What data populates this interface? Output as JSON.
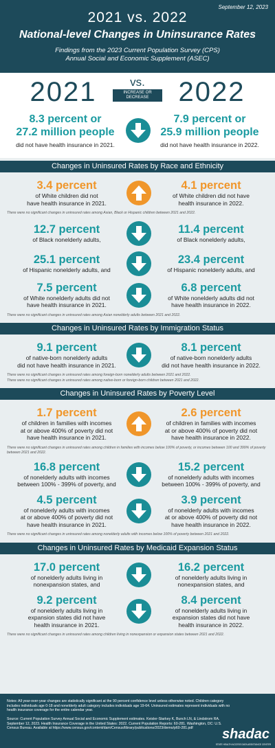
{
  "header": {
    "date": "September 12, 2023",
    "headline": "2021 vs. 2022",
    "title": "National-level Changes in Uninsurance Rates",
    "subtitle": [
      "Findings from the 2023 Current Population Survey (CPS)",
      "Annual Social and Economic Supplement (ASEC)"
    ]
  },
  "comparison": {
    "year_left": "2021",
    "vs": "vs.",
    "change_label": [
      "INCREASE OR",
      "DECREASE"
    ],
    "year_right": "2022",
    "direction": "decrease",
    "left": {
      "stat": [
        "8.3 percent or",
        "27.2 million people"
      ],
      "text": [
        "did not have health insurance in 2021."
      ]
    },
    "right": {
      "stat": [
        "7.9 percent or",
        "25.9 million people"
      ],
      "text": [
        "did not have health insurance in 2022."
      ]
    }
  },
  "sections": [
    {
      "heading": "Changes in Uninsured Rates by Race and Ethnicity",
      "items": [
        {
          "direction": "increase",
          "left": {
            "stat": "3.4 percent",
            "text": [
              "of White children did not",
              "have health insurance in 2021."
            ]
          },
          "right": {
            "stat": "4.1 percent",
            "text": [
              "of White children did not have",
              "health insurance in 2022."
            ]
          }
        },
        {
          "note": [
            "There were no significant changes in uninsured rates among Asian, Black or Hispanic children between 2021 and 2022."
          ]
        },
        {
          "direction": "decrease",
          "left": {
            "stat": "12.7 percent",
            "text": [
              "of Black nonelderly adults,"
            ]
          },
          "right": {
            "stat": "11.4 percent",
            "text": [
              "of Black nonelderly adults,"
            ]
          }
        },
        {
          "direction": "decrease",
          "left": {
            "stat": "25.1 percent",
            "text": [
              "of Hispanic nonelderly adults, and"
            ]
          },
          "right": {
            "stat": "23.4 percent",
            "text": [
              "of Hispanic nonelderly adults, and"
            ]
          }
        },
        {
          "direction": "decrease",
          "left": {
            "stat": "7.5 percent",
            "text": [
              "of White nonelderly adults did not",
              "have health insurance in 2021."
            ]
          },
          "right": {
            "stat": "6.8 percent",
            "text": [
              "of White nonelderly adults did not",
              "have health insurance in 2022."
            ]
          }
        },
        {
          "note": [
            "There were no significant changes in uninsured rates among Asian nonelderly adults between 2021 and 2022."
          ]
        }
      ]
    },
    {
      "heading": "Changes in Uninsured Rates by Immigration Status",
      "items": [
        {
          "direction": "decrease",
          "left": {
            "stat": "9.1 percent",
            "text": [
              "of native-born nonelderly adults",
              "did not have health insurance in 2021."
            ]
          },
          "right": {
            "stat": "8.1 percent",
            "text": [
              "of native-born nonelderly adults",
              "did not have health insurance in 2022."
            ]
          }
        },
        {
          "note": [
            "There were no significant changes in uninsured rates among foreign-born nonelderly adults between 2021 and 2022.",
            "There were no significant changes in uninsured rates among native-born or foreign-born children between 2021 and 2022."
          ]
        }
      ]
    },
    {
      "heading": "Changes in Uninsured Rates by Poverty Level",
      "items": [
        {
          "direction": "increase",
          "left": {
            "stat": "1.7 percent",
            "text": [
              "of children in families with incomes",
              "at or above 400% of poverty did not",
              "have health insurance in 2021."
            ]
          },
          "right": {
            "stat": "2.6 percent",
            "text": [
              "of children in families with incomes",
              "at or above 400% of poverty did not",
              "have health insurance in 2022."
            ]
          }
        },
        {
          "note": [
            "There were no significant changes in uninsured rates among children in families with incomes below 100% of poverty, or incomes between 100 and 399% of poverty between 2021 and 2022."
          ]
        },
        {
          "direction": "decrease",
          "left": {
            "stat": "16.8 percent",
            "text": [
              "of nonelderly adults with incomes",
              "between 100% - 399% of poverty, and"
            ]
          },
          "right": {
            "stat": "15.2 percent",
            "text": [
              "of nonelderly adults with incomes",
              "between 100% - 399% of poverty, and"
            ]
          }
        },
        {
          "direction": "decrease",
          "left": {
            "stat": "4.5 percent",
            "text": [
              "of nonelderly adults with incomes",
              "at or above 400% of poverty did not",
              "have health insurance in 2021."
            ]
          },
          "right": {
            "stat": "3.9 percent",
            "text": [
              "of nonelderly adults with incomes",
              "at or above 400% of poverty did not",
              "have health insurance in 2022."
            ]
          }
        },
        {
          "note": [
            "There were no significant changes in uninsured rates among nonelderly adults with incomes below 100% of poverty between 2021 and 2022."
          ]
        }
      ]
    },
    {
      "heading": "Changes in Uninsured Rates by Medicaid Expansion Status",
      "items": [
        {
          "direction": "decrease",
          "left": {
            "stat": "17.0 percent",
            "text": [
              "of nonelderly adults living in",
              "nonexpansion states, and"
            ]
          },
          "right": {
            "stat": "16.2 percent",
            "text": [
              "of nonelderly adults living in",
              "nonexpansion states, and"
            ]
          }
        },
        {
          "direction": "decrease",
          "left": {
            "stat": "9.2 percent",
            "text": [
              "of nonelderly adults living in",
              "expansion states did not have",
              "health insurance in 2021."
            ]
          },
          "right": {
            "stat": "8.4 percent",
            "text": [
              "of nonelderly adults living in",
              "expansion states did not have",
              "health insurance in 2022."
            ]
          }
        },
        {
          "note": [
            "There were no significant changes in uninsured rates among children living in nonexpansion or expansion states between 2021 and 2022."
          ]
        }
      ]
    }
  ],
  "footer": {
    "notes": "Notes: All year-over-year changes are statistically significant at the 90 percent confidence level unless otherwise noted. Children category includes individuals age 0-18 and nonelderly adult category includes individuals age 19-64. Uninsured estimates represent individuals with no health insurance coverage for the entire calendar year.",
    "source": "Source: Current Population Survey Annual Social and Economic Supplement estimates. Keisler-Starkey K, Bunch LN, & Lindstrom RA. September 12, 2023. Health Insurance Coverage in the United States: 2022. Current Population Reports: 60-281. Washington, DC: U.S. Census Bureau. Available at https://www.census.gov/content/dam/Census/library/publications/2023/demo/p60-281.pdf",
    "logo": "shadac",
    "tagline": "STATE HEALTH ACCESS DATA ASSISTANCE CENTER"
  }
}
